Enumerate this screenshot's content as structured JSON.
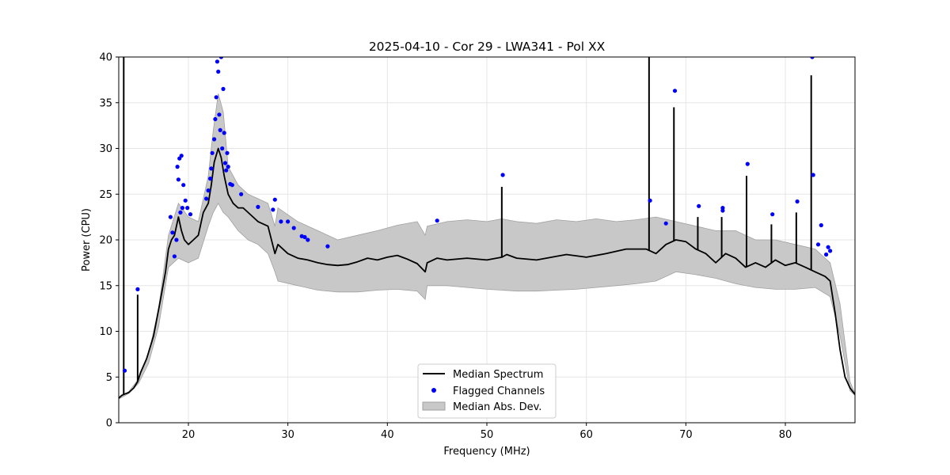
{
  "chart_data": {
    "type": "line",
    "title": "2025-04-10 - Cor 29 - LWA341 - Pol XX",
    "xlabel": "Frequency (MHz)",
    "ylabel": "Power (CPU)",
    "xlim": [
      13,
      87
    ],
    "ylim": [
      0,
      40
    ],
    "xticks": [
      20,
      30,
      40,
      50,
      60,
      70,
      80
    ],
    "yticks": [
      0,
      5,
      10,
      15,
      20,
      25,
      30,
      35,
      40
    ],
    "grid": true,
    "legend": {
      "placement": "bottom-center",
      "entries": [
        "Median Spectrum",
        "Flagged Channels",
        "Median Abs. Dev."
      ]
    },
    "colors": {
      "median": "#000000",
      "flagged": "#0000ff",
      "mad_fill": "#c8c8c8",
      "mad_edge": "#a0a0a0"
    },
    "series": [
      {
        "name": "Median Spectrum",
        "x": [
          13.0,
          13.3,
          13.5,
          14.0,
          14.5,
          14.9,
          15.2,
          15.8,
          16.5,
          17.2,
          17.7,
          18.0,
          18.3,
          18.6,
          19.0,
          19.3,
          19.6,
          20.0,
          20.5,
          21.0,
          21.5,
          22.0,
          22.3,
          22.6,
          23.0,
          23.3,
          23.6,
          24.0,
          24.5,
          25.0,
          25.5,
          26.0,
          27.0,
          28.0,
          28.7,
          29.0,
          30.0,
          31.0,
          32.0,
          33.0,
          34.0,
          35.0,
          36.0,
          37.0,
          38.0,
          39.0,
          40.0,
          41.0,
          42.0,
          43.0,
          43.8,
          44.0,
          45.0,
          46.0,
          48.0,
          50.0,
          51.5,
          52.0,
          53.0,
          55.0,
          57.0,
          58.0,
          60.0,
          62.0,
          64.0,
          65.0,
          66.0,
          67.0,
          68.0,
          69.0,
          70.0,
          71.0,
          72.0,
          73.0,
          74.0,
          75.0,
          76.0,
          77.0,
          78.0,
          79.0,
          80.0,
          81.0,
          82.0,
          83.0,
          84.0,
          84.5,
          85.0,
          85.5,
          86.0,
          86.5,
          87.0
        ],
        "y": [
          2.7,
          3.0,
          3.1,
          3.3,
          3.8,
          4.5,
          5.5,
          7.0,
          9.5,
          13.5,
          16.5,
          19.0,
          20.0,
          20.5,
          22.5,
          21.0,
          20.0,
          19.5,
          20.0,
          20.5,
          23.0,
          24.0,
          26.0,
          28.5,
          30.0,
          29.0,
          27.0,
          25.0,
          24.0,
          23.5,
          23.5,
          23.0,
          22.0,
          21.5,
          18.5,
          19.5,
          18.5,
          18.0,
          17.8,
          17.5,
          17.3,
          17.2,
          17.3,
          17.6,
          18.0,
          17.8,
          18.1,
          18.3,
          17.9,
          17.4,
          16.5,
          17.5,
          18.0,
          17.8,
          18.0,
          17.8,
          18.1,
          18.4,
          18.0,
          17.8,
          18.2,
          18.4,
          18.1,
          18.5,
          19.0,
          19.0,
          19.0,
          18.5,
          19.5,
          20.0,
          19.8,
          19.0,
          18.5,
          17.5,
          18.5,
          18.0,
          17.0,
          17.5,
          17.0,
          17.8,
          17.2,
          17.5,
          17.0,
          16.5,
          16.0,
          15.5,
          12.0,
          8.0,
          5.0,
          3.8,
          3.1
        ]
      },
      {
        "name": "Median Abs. Dev.",
        "x": [
          13.0,
          14.0,
          15.0,
          16.0,
          17.0,
          18.0,
          19.0,
          20.0,
          21.0,
          22.0,
          22.5,
          23.0,
          23.5,
          24.0,
          25.0,
          26.0,
          27.0,
          28.0,
          28.7,
          29.0,
          31.0,
          33.0,
          35.0,
          37.0,
          39.0,
          41.0,
          43.0,
          43.8,
          44.0,
          46.0,
          48.0,
          50.0,
          51.5,
          53.0,
          55.0,
          57.0,
          59.0,
          61.0,
          63.0,
          65.0,
          67.0,
          69.0,
          71.0,
          73.0,
          75.0,
          77.0,
          79.0,
          81.0,
          83.0,
          84.5,
          85.5,
          86.5,
          87.0
        ],
        "lower": [
          2.6,
          3.2,
          4.3,
          6.5,
          10.5,
          17.0,
          18.0,
          17.5,
          18.0,
          21.5,
          23.0,
          24.0,
          23.0,
          22.5,
          21.0,
          20.0,
          19.5,
          18.5,
          16.5,
          15.5,
          15.0,
          14.5,
          14.3,
          14.3,
          14.5,
          14.6,
          14.4,
          13.5,
          15.0,
          15.0,
          14.8,
          14.6,
          14.5,
          14.4,
          14.4,
          14.5,
          14.6,
          14.8,
          15.0,
          15.2,
          15.5,
          16.5,
          16.2,
          15.8,
          15.2,
          14.8,
          14.6,
          14.6,
          14.8,
          13.8,
          9.5,
          3.5,
          3.0
        ],
        "upper": [
          2.8,
          3.4,
          4.8,
          7.5,
          12.5,
          20.5,
          24.0,
          22.5,
          22.0,
          27.0,
          32.0,
          36.0,
          34.0,
          28.0,
          26.0,
          25.0,
          24.5,
          24.0,
          21.5,
          23.5,
          22.0,
          21.0,
          20.0,
          20.5,
          21.0,
          21.6,
          22.0,
          20.5,
          21.5,
          22.0,
          22.2,
          22.0,
          22.3,
          22.0,
          21.8,
          22.2,
          22.0,
          22.3,
          22.0,
          22.2,
          22.5,
          22.0,
          21.5,
          21.0,
          21.0,
          20.0,
          20.0,
          19.5,
          19.0,
          17.5,
          13.0,
          4.5,
          3.2
        ]
      }
    ],
    "spikes": [
      {
        "x": 13.5,
        "y": 40.0
      },
      {
        "x": 14.9,
        "y": 14.0
      },
      {
        "x": 51.5,
        "y": 25.8
      },
      {
        "x": 66.3,
        "y": 40.0
      },
      {
        "x": 68.8,
        "y": 34.5
      },
      {
        "x": 71.2,
        "y": 22.5
      },
      {
        "x": 73.6,
        "y": 22.5
      },
      {
        "x": 76.1,
        "y": 27.0
      },
      {
        "x": 78.6,
        "y": 21.7
      },
      {
        "x": 81.1,
        "y": 23.0
      },
      {
        "x": 82.6,
        "y": 38.0
      }
    ],
    "flagged": {
      "name": "Flagged Channels",
      "x": [
        13.6,
        14.9,
        18.2,
        18.4,
        18.6,
        18.8,
        18.9,
        19.0,
        19.1,
        19.2,
        19.3,
        19.4,
        19.5,
        19.7,
        19.9,
        20.2,
        21.8,
        22.0,
        22.2,
        22.3,
        22.4,
        22.6,
        22.7,
        22.8,
        22.9,
        23.0,
        23.1,
        23.2,
        23.3,
        23.4,
        23.5,
        23.6,
        23.7,
        23.8,
        23.9,
        24.0,
        24.2,
        24.4,
        25.3,
        27.0,
        28.5,
        28.7,
        29.3,
        30.0,
        30.6,
        31.4,
        31.7,
        32.0,
        34.0,
        45.0,
        51.6,
        66.4,
        68.0,
        68.9,
        71.3,
        73.7,
        73.7,
        76.2,
        78.7,
        81.2,
        82.7,
        82.8,
        83.3,
        83.6,
        84.1,
        84.3,
        84.5
      ],
      "y": [
        5.7,
        14.6,
        22.5,
        20.8,
        18.2,
        20.0,
        28.0,
        26.6,
        28.9,
        23.0,
        29.2,
        23.5,
        26.0,
        24.3,
        23.5,
        22.8,
        24.5,
        25.4,
        26.7,
        27.8,
        29.5,
        31.0,
        33.2,
        35.6,
        39.5,
        38.4,
        33.7,
        32.0,
        40.0,
        30.0,
        36.5,
        31.7,
        28.4,
        27.6,
        29.5,
        28.0,
        26.1,
        26.0,
        25.0,
        23.6,
        23.3,
        24.4,
        22.0,
        22.0,
        21.3,
        20.4,
        20.3,
        20.0,
        19.3,
        22.1,
        27.1,
        24.3,
        21.8,
        36.3,
        23.7,
        23.5,
        23.2,
        28.3,
        22.8,
        24.2,
        40.0,
        27.1,
        19.5,
        21.6,
        18.4,
        19.2,
        18.8
      ]
    }
  }
}
